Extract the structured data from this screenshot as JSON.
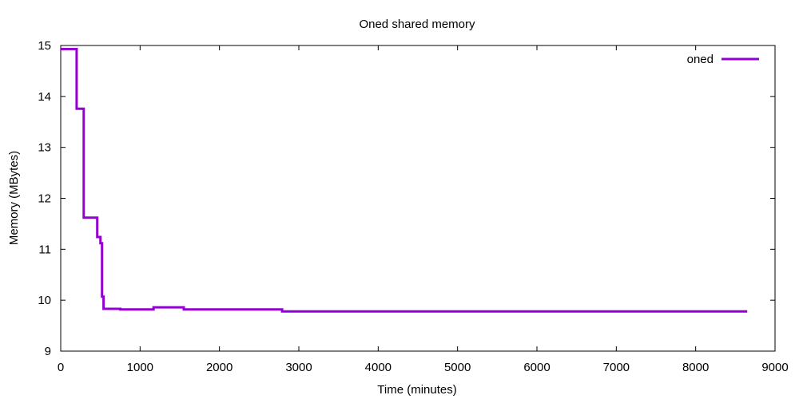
{
  "chart_data": {
    "type": "line",
    "title": "Oned shared memory",
    "xlabel": "Time (minutes)",
    "ylabel": "Memory (MBytes)",
    "xlim": [
      0,
      9000
    ],
    "ylim": [
      9,
      15
    ],
    "xticks": [
      0,
      1000,
      2000,
      3000,
      4000,
      5000,
      6000,
      7000,
      8000,
      9000
    ],
    "yticks": [
      9,
      10,
      11,
      12,
      13,
      14,
      15
    ],
    "grid": false,
    "legend_position": "top-right",
    "series": [
      {
        "name": "oned",
        "color": "#9400d3",
        "step": true,
        "x": [
          0,
          20,
          200,
          290,
          460,
          500,
          520,
          540,
          550,
          750,
          1170,
          1550,
          2790,
          8650
        ],
        "y": [
          14.93,
          14.93,
          13.76,
          11.62,
          11.24,
          11.12,
          10.07,
          9.83,
          9.83,
          9.82,
          9.86,
          9.82,
          9.78,
          9.78
        ]
      }
    ]
  }
}
